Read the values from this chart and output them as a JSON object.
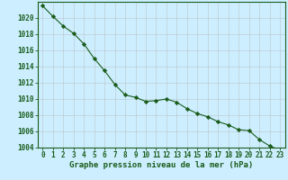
{
  "x": [
    0,
    1,
    2,
    3,
    4,
    5,
    6,
    7,
    8,
    9,
    10,
    11,
    12,
    13,
    14,
    15,
    16,
    17,
    18,
    19,
    20,
    21,
    22,
    23
  ],
  "y": [
    1021.5,
    1020.2,
    1019.0,
    1018.1,
    1016.8,
    1015.0,
    1013.5,
    1011.8,
    1010.5,
    1010.2,
    1009.7,
    1009.8,
    1010.0,
    1009.6,
    1008.8,
    1008.2,
    1007.8,
    1007.2,
    1006.8,
    1006.2,
    1006.1,
    1005.0,
    1004.2,
    1003.7
  ],
  "ylim": [
    1004,
    1022
  ],
  "yticks": [
    1004,
    1006,
    1008,
    1010,
    1012,
    1014,
    1016,
    1018,
    1020
  ],
  "xticks": [
    0,
    1,
    2,
    3,
    4,
    5,
    6,
    7,
    8,
    9,
    10,
    11,
    12,
    13,
    14,
    15,
    16,
    17,
    18,
    19,
    20,
    21,
    22,
    23
  ],
  "xlabel": "Graphe pression niveau de la mer (hPa)",
  "line_color": "#1a5c1a",
  "marker": "D",
  "marker_size": 2.2,
  "background_color": "#cceeff",
  "grid_color": "#bbbbbb",
  "border_color": "#1a5c1a",
  "label_color": "#1a5c1a",
  "tick_label_fontsize": 5.5,
  "xlabel_fontsize": 6.5
}
